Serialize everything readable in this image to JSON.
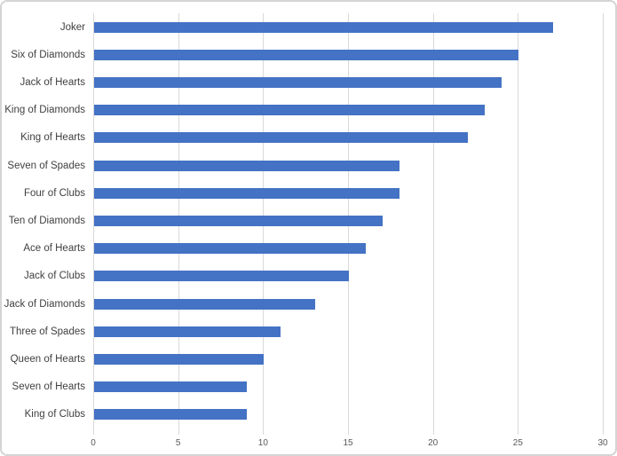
{
  "chart_data": {
    "type": "bar",
    "orientation": "horizontal",
    "title": "",
    "categories": [
      "Joker",
      "Six of Diamonds",
      "Jack of Hearts",
      "King of Diamonds",
      "King of Hearts",
      "Seven of Spades",
      "Four of Clubs",
      "Ten of Diamonds",
      "Ace of Hearts",
      "Jack of Clubs",
      "Jack of Diamonds",
      "Three of Spades",
      "Queen of Hearts",
      "Seven of Hearts",
      "King of Clubs"
    ],
    "values": [
      27,
      25,
      24,
      23,
      22,
      18,
      18,
      17,
      16,
      15,
      13,
      11,
      10,
      9,
      9
    ],
    "xlim": [
      0,
      30
    ],
    "xticks": [
      0,
      5,
      10,
      15,
      20,
      25,
      30
    ],
    "xtick_labels": [
      "0",
      "5",
      "10",
      "15",
      "20",
      "25",
      "30"
    ],
    "grid": "vertical-only",
    "legend": "none",
    "colors": {
      "bar": "#4472C4",
      "gridline": "#D9D9D9",
      "tick_label": "#595959",
      "category_label": "#404040",
      "frame_border": "#D4D4D4",
      "background": "#FFFFFF"
    }
  }
}
